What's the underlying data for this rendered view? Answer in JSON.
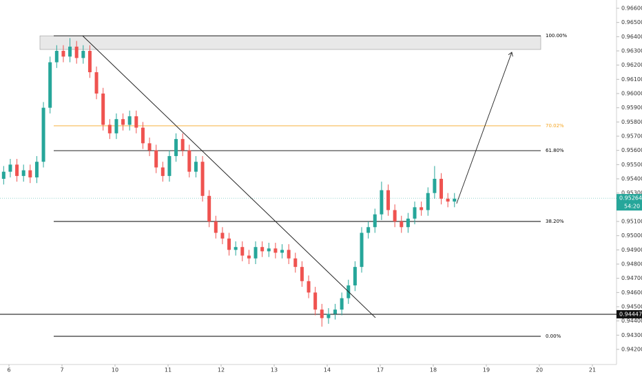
{
  "chart_data": {
    "type": "candlestick",
    "xlim": [
      -0.169,
      11.455
    ],
    "ylim": [
      0.940936,
      0.966581
    ],
    "xticks": [
      {
        "value": 0,
        "label": "6"
      },
      {
        "value": 1,
        "label": "7"
      },
      {
        "value": 2,
        "label": "10"
      },
      {
        "value": 3,
        "label": "11"
      },
      {
        "value": 4,
        "label": "12"
      },
      {
        "value": 5,
        "label": "13"
      },
      {
        "value": 6,
        "label": "14"
      },
      {
        "value": 7,
        "label": "17"
      },
      {
        "value": 8,
        "label": "18"
      },
      {
        "value": 9,
        "label": "19"
      },
      {
        "value": 10,
        "label": "20"
      },
      {
        "value": 11,
        "label": "21"
      }
    ],
    "yticks": [
      {
        "value": 0.966,
        "label": "0.96600"
      },
      {
        "value": 0.965,
        "label": "0.96500"
      },
      {
        "value": 0.964,
        "label": "0.96400"
      },
      {
        "value": 0.963,
        "label": "0.96300"
      },
      {
        "value": 0.962,
        "label": "0.96200"
      },
      {
        "value": 0.961,
        "label": "0.96100"
      },
      {
        "value": 0.96,
        "label": "0.96000"
      },
      {
        "value": 0.959,
        "label": "0.95900"
      },
      {
        "value": 0.958,
        "label": "0.95800"
      },
      {
        "value": 0.957,
        "label": "0.95700"
      },
      {
        "value": 0.956,
        "label": "0.95600"
      },
      {
        "value": 0.955,
        "label": "0.95500"
      },
      {
        "value": 0.954,
        "label": "0.95400"
      },
      {
        "value": 0.953,
        "label": "0.95300"
      },
      {
        "value": 0.951,
        "label": "0.95100"
      },
      {
        "value": 0.95,
        "label": "0.95000"
      },
      {
        "value": 0.949,
        "label": "0.94900"
      },
      {
        "value": 0.948,
        "label": "0.94800"
      },
      {
        "value": 0.947,
        "label": "0.94700"
      },
      {
        "value": 0.946,
        "label": "0.94600"
      },
      {
        "value": 0.945,
        "label": "0.94500"
      },
      {
        "value": 0.944,
        "label": "0.94400"
      },
      {
        "value": 0.943,
        "label": "0.94300"
      },
      {
        "value": 0.942,
        "label": "0.94200"
      }
    ],
    "up_color": "#26a69a",
    "down_color": "#ef5350",
    "x": [
      -0.1,
      0.025,
      0.15,
      0.275,
      0.4,
      0.525,
      0.65,
      0.775,
      0.9,
      1.025,
      1.15,
      1.275,
      1.4,
      1.525,
      1.65,
      1.775,
      1.9,
      2.025,
      2.15,
      2.275,
      2.4,
      2.525,
      2.65,
      2.775,
      2.9,
      3.025,
      3.15,
      3.275,
      3.4,
      3.525,
      3.65,
      3.775,
      3.9,
      4.025,
      4.15,
      4.275,
      4.4,
      4.525,
      4.65,
      4.775,
      4.9,
      5.025,
      5.15,
      5.275,
      5.4,
      5.525,
      5.65,
      5.775,
      5.9,
      6.025,
      6.15,
      6.275,
      6.4,
      6.525,
      6.65,
      6.775,
      6.9,
      7.025,
      7.15,
      7.275,
      7.4,
      7.525,
      7.65,
      7.775,
      7.9,
      8.025,
      8.15,
      8.275,
      8.4
    ],
    "open": [
      0.954,
      0.9545,
      0.955,
      0.9542,
      0.9546,
      0.9541,
      0.9552,
      0.959,
      0.9622,
      0.963,
      0.9626,
      0.9633,
      0.9625,
      0.963,
      0.9615,
      0.96,
      0.9578,
      0.9572,
      0.9582,
      0.9578,
      0.9584,
      0.9576,
      0.9565,
      0.956,
      0.9548,
      0.9542,
      0.9556,
      0.9568,
      0.956,
      0.9545,
      0.9552,
      0.9528,
      0.951,
      0.9502,
      0.9498,
      0.949,
      0.9492,
      0.9486,
      0.9484,
      0.9492,
      0.9489,
      0.9491,
      0.9488,
      0.949,
      0.9484,
      0.9478,
      0.9468,
      0.946,
      0.9448,
      0.9442,
      0.9445,
      0.9448,
      0.9456,
      0.9465,
      0.9478,
      0.9502,
      0.9506,
      0.9515,
      0.9532,
      0.9518,
      0.951,
      0.9506,
      0.9512,
      0.952,
      0.9518,
      0.953,
      0.954,
      0.9526,
      0.9524
    ],
    "high": [
      0.9549,
      0.9554,
      0.9554,
      0.955,
      0.955,
      0.9556,
      0.9594,
      0.9626,
      0.9634,
      0.9634,
      0.9639,
      0.9637,
      0.9634,
      0.9634,
      0.9619,
      0.9604,
      0.9582,
      0.9586,
      0.9586,
      0.9588,
      0.9588,
      0.958,
      0.9569,
      0.9564,
      0.9552,
      0.956,
      0.9572,
      0.9572,
      0.9564,
      0.9556,
      0.9556,
      0.9532,
      0.9514,
      0.9506,
      0.9502,
      0.9496,
      0.9496,
      0.949,
      0.9496,
      0.9496,
      0.9495,
      0.9495,
      0.9494,
      0.9494,
      0.9488,
      0.9482,
      0.9472,
      0.9464,
      0.9452,
      0.9449,
      0.9452,
      0.946,
      0.9469,
      0.9482,
      0.9506,
      0.951,
      0.9519,
      0.9538,
      0.9536,
      0.9522,
      0.9514,
      0.9516,
      0.9524,
      0.9524,
      0.9534,
      0.9549,
      0.9544,
      0.953,
      0.953
    ],
    "low": [
      0.9536,
      0.9541,
      0.9538,
      0.9538,
      0.9537,
      0.9537,
      0.9548,
      0.9586,
      0.9618,
      0.9622,
      0.9622,
      0.9621,
      0.9621,
      0.9611,
      0.9596,
      0.9574,
      0.9568,
      0.9568,
      0.9574,
      0.9574,
      0.9572,
      0.9561,
      0.9556,
      0.9544,
      0.9538,
      0.9538,
      0.9552,
      0.9556,
      0.9541,
      0.9541,
      0.9524,
      0.9506,
      0.9498,
      0.9494,
      0.9486,
      0.9486,
      0.9482,
      0.948,
      0.948,
      0.9485,
      0.9485,
      0.9484,
      0.9484,
      0.948,
      0.9474,
      0.9464,
      0.9456,
      0.9444,
      0.9436,
      0.9438,
      0.9441,
      0.9444,
      0.9452,
      0.9461,
      0.9474,
      0.9498,
      0.9502,
      0.9511,
      0.9514,
      0.9506,
      0.9502,
      0.9502,
      0.9508,
      0.9514,
      0.9514,
      0.9526,
      0.9522,
      0.952,
      0.952
    ],
    "close": [
      0.9545,
      0.955,
      0.9542,
      0.9546,
      0.9541,
      0.9552,
      0.959,
      0.9622,
      0.963,
      0.9626,
      0.9633,
      0.9625,
      0.963,
      0.9615,
      0.96,
      0.9578,
      0.9572,
      0.9582,
      0.9578,
      0.9584,
      0.9576,
      0.9565,
      0.956,
      0.9548,
      0.9542,
      0.9556,
      0.9568,
      0.956,
      0.9545,
      0.9552,
      0.9528,
      0.951,
      0.9502,
      0.9498,
      0.949,
      0.9492,
      0.9486,
      0.9484,
      0.9492,
      0.9489,
      0.9491,
      0.9488,
      0.949,
      0.9484,
      0.9478,
      0.9468,
      0.946,
      0.9448,
      0.9442,
      0.9445,
      0.9448,
      0.9456,
      0.9465,
      0.9478,
      0.9502,
      0.9506,
      0.9515,
      0.9532,
      0.9518,
      0.951,
      0.9506,
      0.9512,
      0.952,
      0.9518,
      0.953,
      0.954,
      0.9526,
      0.9524,
      0.9526
    ],
    "zone": [
      0.96406,
      0.9631
    ],
    "fib_levels": [
      {
        "label": "100.00%",
        "value": 0.96406,
        "color": "#000000"
      },
      {
        "label": "70.02%",
        "value": 0.95773,
        "color": "#f5a623"
      },
      {
        "label": "61.80%",
        "value": 0.95598,
        "color": "#000000"
      },
      {
        "label": "38.20%",
        "value": 0.951,
        "color": "#000000"
      },
      {
        "label": "0.00%",
        "value": 0.94292,
        "color": "#000000"
      }
    ],
    "support": 0.94447,
    "current_price": 0.95264,
    "countdown": "54:20",
    "trend_line": {
      "x": [
        1.39,
        6.91
      ],
      "y": [
        0.96406,
        0.94423
      ]
    },
    "arrow": {
      "x": [
        8.44,
        9.48
      ],
      "y": [
        0.95226,
        0.9629
      ]
    }
  }
}
